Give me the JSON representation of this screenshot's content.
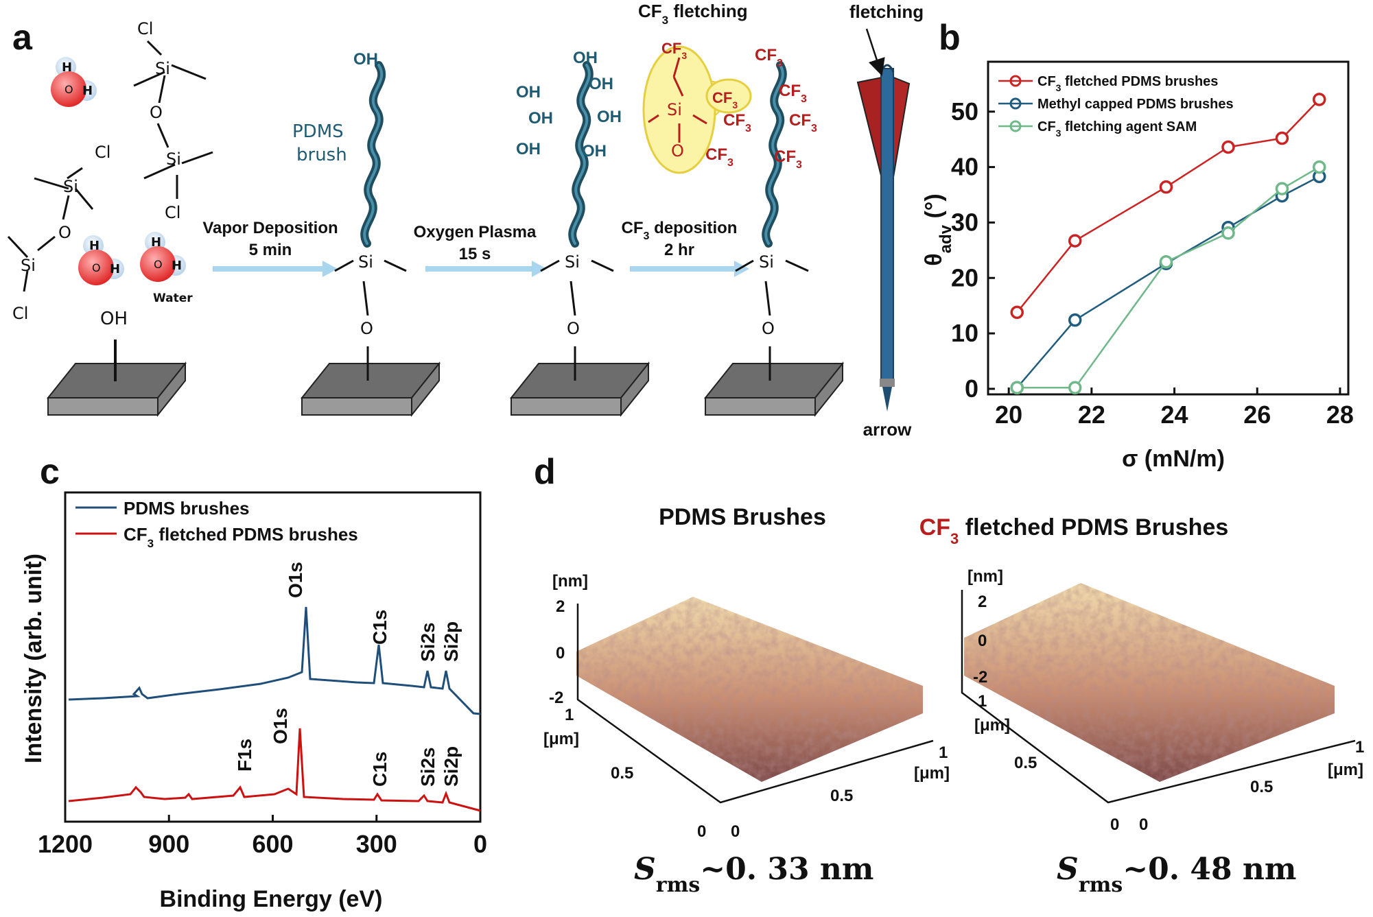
{
  "panels": {
    "a": "a",
    "b": "b",
    "c": "c",
    "d": "d"
  },
  "schematic": {
    "water_label": "Water",
    "surface_oh": "OH",
    "step1": {
      "line1": "Vapor Deposition",
      "line2": "5 min"
    },
    "step2": {
      "line1": "Oxygen Plasma",
      "line2": "15 s"
    },
    "step3": {
      "line1_pre": "CF",
      "line1_sub": "3",
      "line1_post": " deposition",
      "line2": "2 hr"
    },
    "pdms_label_1": "PDMS",
    "pdms_label_2": "brush",
    "oh": "OH",
    "si": "Si",
    "o": "O",
    "cl": "Cl",
    "cf3_pre": "CF",
    "cf3_sub": "3",
    "cf3_fletching_pre": "CF",
    "cf3_fletching_sub": "3",
    "cf3_fletching_post": " fletching",
    "fletching": "fletching",
    "arrow": "arrow"
  },
  "chart_data": [
    {
      "panel": "b",
      "type": "line",
      "xlabel": "σ (mN/m)",
      "ylabel_main": "θ",
      "ylabel_sub": "adv",
      "ylabel_unit": " (°)",
      "xlim": [
        19.5,
        28.2
      ],
      "ylim": [
        -1,
        59
      ],
      "xticks": [
        20,
        22,
        24,
        26,
        28
      ],
      "yticks": [
        0,
        10,
        20,
        30,
        40,
        50
      ],
      "legend_position": "top-left",
      "series": [
        {
          "name_pre": "CF",
          "name_sub": "3",
          "name_post": " fletched PDMS brushes",
          "color": "#cc2222",
          "x": [
            20.2,
            21.6,
            23.8,
            25.3,
            26.6,
            27.5
          ],
          "y": [
            13.8,
            26.7,
            36.4,
            43.6,
            45.2,
            52.2
          ]
        },
        {
          "name_pre": "Methyl  capped PDMS brushes",
          "name_sub": "",
          "name_post": "",
          "color": "#1f5c80",
          "x": [
            20.2,
            21.6,
            23.8,
            25.3,
            26.6,
            27.5
          ],
          "y": [
            0.2,
            12.4,
            22.6,
            29.1,
            34.8,
            38.3
          ]
        },
        {
          "name_pre": "CF",
          "name_sub": "3",
          "name_post": " fletching agent SAM",
          "color": "#6fb88a",
          "x": [
            20.2,
            21.6,
            23.8,
            25.3,
            26.6,
            27.5
          ],
          "y": [
            0.2,
            0.2,
            22.9,
            28.1,
            36.1,
            40.0
          ]
        }
      ]
    },
    {
      "panel": "c",
      "type": "line",
      "xlabel": "Binding Energy (eV)",
      "ylabel": "Intensity (arb. unit)",
      "xlim": [
        1200,
        0
      ],
      "xticks": [
        1200,
        900,
        600,
        300,
        0
      ],
      "legend_position": "top-left",
      "series": [
        {
          "name": "PDMS brushes",
          "color": "#1f4e79"
        },
        {
          "name_pre": "CF",
          "name_sub": "3",
          "name_post": " fletched PDMS brushes",
          "color": "#cc1111"
        }
      ],
      "peaks_top": [
        "O1s",
        "C1s",
        "Si2s",
        "Si2p"
      ],
      "peaks_bottom": [
        "F1s",
        "O1s",
        "C1s",
        "Si2s",
        "Si2p"
      ]
    }
  ],
  "afm": {
    "left_title": "PDMS Brushes",
    "right_title_pre": "CF",
    "right_title_sub": "3",
    "right_title_post": " fletched PDMS Brushes",
    "z_unit": "[nm]",
    "xy_unit": "[μm]",
    "z_ticks": [
      "2",
      "0",
      "-2"
    ],
    "xy_ticks": [
      "1",
      "0.5",
      "0"
    ],
    "srms_sub": "rms",
    "srms_left": "~0. 33 nm",
    "srms_right": "~0. 48 nm"
  }
}
